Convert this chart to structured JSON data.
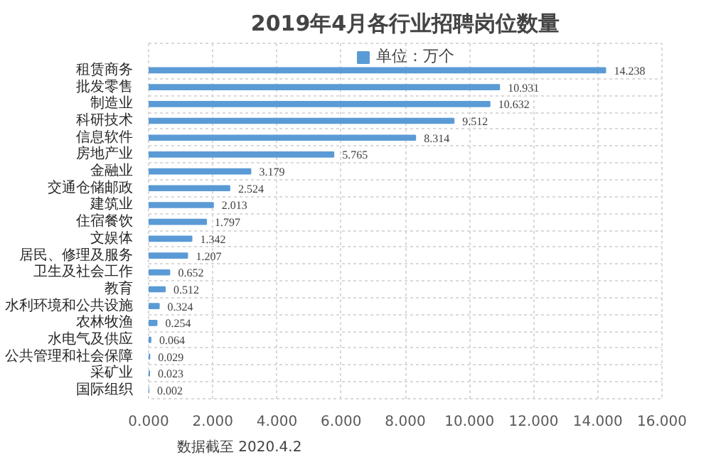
{
  "chart_data": {
    "type": "bar",
    "orientation": "horizontal",
    "title": "2019年4月各行业招聘岗位数量",
    "categories": [
      "租赁商务",
      "批发零售",
      "制造业",
      "科研技术",
      "信息软件",
      "房地产业",
      "金融业",
      "交通仓储邮政",
      "建筑业",
      "住宿餐饮",
      "文娱体",
      "居民、修理及服务",
      "卫生及社会工作",
      "教育",
      "水利环境和公共设施",
      "农林牧渔",
      "水电气及供应",
      "公共管理和社会保障",
      "采矿业",
      "国际组织"
    ],
    "series": [
      {
        "name": "单位：万个",
        "color": "#5b9bd5",
        "values": [
          14.238,
          10.931,
          10.632,
          9.512,
          8.314,
          5.765,
          3.179,
          2.524,
          2.013,
          1.797,
          1.342,
          1.207,
          0.652,
          0.512,
          0.324,
          0.254,
          0.064,
          0.029,
          0.023,
          0.002
        ]
      }
    ],
    "xlim": [
      0,
      16
    ],
    "xticks": [
      {
        "value": 0,
        "label": "0.000"
      },
      {
        "value": 2,
        "label": "2.000"
      },
      {
        "value": 4,
        "label": "4.000"
      },
      {
        "value": 6,
        "label": "6.000"
      },
      {
        "value": 8,
        "label": "8.000"
      },
      {
        "value": 10,
        "label": "10.000"
      },
      {
        "value": 12,
        "label": "12.000"
      },
      {
        "value": 14,
        "label": "14.000"
      },
      {
        "value": 16,
        "label": "16.000"
      }
    ],
    "data_labels": true,
    "grid": true,
    "legend": "top",
    "annotations": [
      "数据截至 2020.4.2"
    ]
  }
}
